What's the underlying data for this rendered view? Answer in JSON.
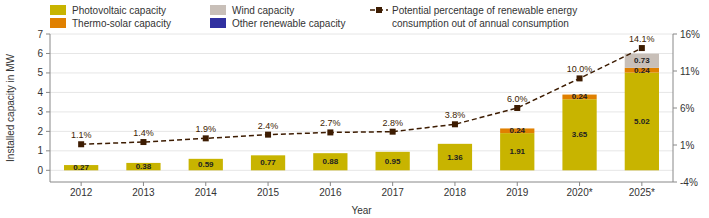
{
  "chart_data": {
    "type": "bar",
    "stacked": true,
    "categories": [
      "2012",
      "2013",
      "2014",
      "2015",
      "2016",
      "2017",
      "2018",
      "2019",
      "2020*",
      "2025*"
    ],
    "xlabel": "Year",
    "ylabel": "Installed capacity in MW",
    "ylim": [
      -0.6,
      7.0
    ],
    "yticks": [
      0,
      1,
      2,
      3,
      4,
      5,
      6,
      7
    ],
    "y2lim": [
      -4,
      16
    ],
    "y2ticks": [
      {
        "value": -4,
        "label": "-4%"
      },
      {
        "value": 1,
        "label": "1%"
      },
      {
        "value": 6,
        "label": "6%"
      },
      {
        "value": 11,
        "label": "11%"
      },
      {
        "value": 16,
        "label": "16%"
      }
    ],
    "grid": true,
    "legend": "top",
    "series": [
      {
        "name": "Photovoltaic capacity",
        "color": "#c8b400",
        "values": [
          0.27,
          0.38,
          0.59,
          0.77,
          0.88,
          0.95,
          1.36,
          1.91,
          3.65,
          5.02
        ],
        "data_labels": true
      },
      {
        "name": "Thermo-solar capacity",
        "color": "#e08000",
        "values": [
          0.0,
          0.0,
          0.0,
          0.0,
          0.0,
          0.0,
          0.0,
          0.24,
          0.24,
          0.24
        ],
        "data_labels": true
      },
      {
        "name": "Wind capacity",
        "color": "#c8bfb8",
        "values": [
          0.0,
          0.0,
          0.0,
          0.0,
          0.0,
          0.0,
          0.0,
          0.0,
          0.0,
          0.73
        ],
        "data_labels": true
      },
      {
        "name": "Other renewable capacity",
        "color": "#3030a0",
        "values": [
          0.0,
          0.0,
          0.0,
          0.0,
          0.0,
          0.0,
          0.0,
          0.0,
          0.0,
          0.0
        ],
        "data_labels": false
      },
      {
        "name": "Potential percentage of renewable energy\nconsumption out of annual consumption",
        "type": "line",
        "axis": "y2",
        "color": "#3d1c02",
        "marker": "square",
        "line_style": "dashed",
        "values": [
          1.1,
          1.4,
          1.9,
          2.4,
          2.7,
          2.8,
          3.8,
          6.0,
          10.0,
          14.1
        ],
        "value_labels": [
          "1.1%",
          "1.4%",
          "1.9%",
          "2.4%",
          "2.7%",
          "2.8%",
          "3.8%",
          "6.0%",
          "10.0%",
          "14.1%"
        ],
        "data_labels": true
      }
    ]
  }
}
